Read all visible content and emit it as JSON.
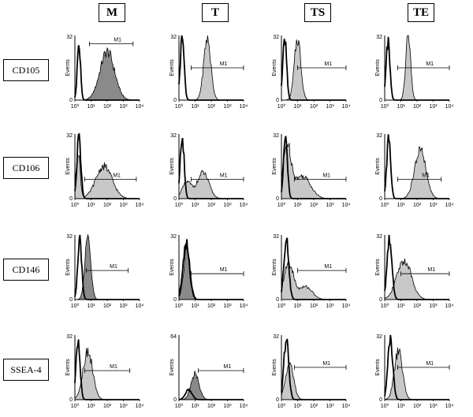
{
  "chart_data": {
    "type": "histogram-grid",
    "columns": [
      "M",
      "T",
      "TS",
      "TE"
    ],
    "rows": [
      "CD105",
      "CD106",
      "CD146",
      "SSEA-4"
    ],
    "axis": {
      "ylabel": "Events",
      "xscale": "log",
      "xlim": [
        1,
        10000
      ],
      "xticks": [
        "10⁰",
        "10¹",
        "10²",
        "10³",
        "10⁴"
      ],
      "y_ticks_default": [
        "0",
        "32"
      ],
      "y_ticks_override": {
        "SSEA-4|T": [
          "0",
          "64"
        ]
      }
    },
    "gate_label": "M1",
    "colors": {
      "line": "#000000",
      "fill_light": "#c8c8c8",
      "fill_dark": "#8a8a8a"
    },
    "gates": {
      "CD105": {
        "M": [
          0.9,
          3.6,
          0.87
        ],
        "T": [
          0.75,
          4.0,
          0.5
        ],
        "TS": [
          1.0,
          4.0,
          0.5
        ],
        "TE": [
          0.8,
          4.0,
          0.5
        ]
      },
      "CD106": {
        "M": [
          0.6,
          3.8,
          0.3
        ],
        "T": [
          0.75,
          4.0,
          0.3
        ],
        "TS": [
          0.8,
          4.0,
          0.3
        ],
        "TE": [
          0.8,
          3.5,
          0.3
        ]
      },
      "CD146": {
        "M": [
          0.7,
          3.3,
          0.45
        ],
        "T": [
          0.75,
          4.0,
          0.4
        ],
        "TS": [
          1.0,
          4.0,
          0.45
        ],
        "TE": [
          1.0,
          4.0,
          0.4
        ]
      },
      "SSEA-4": {
        "M": [
          0.6,
          3.4,
          0.45
        ],
        "T": [
          1.2,
          4.0,
          0.45
        ],
        "TS": [
          0.8,
          4.0,
          0.5
        ],
        "TE": [
          0.8,
          4.0,
          0.5
        ]
      }
    },
    "histograms": {
      "CD105": {
        "M": {
          "control": [
            [
              0.25,
              0.85,
              0.1
            ]
          ],
          "sample": [
            [
              2.0,
              0.75,
              0.45
            ]
          ],
          "fill": "dark"
        },
        "T": {
          "control": [
            [
              0.2,
              0.95,
              0.12
            ]
          ],
          "sample": [
            [
              1.75,
              0.95,
              0.22
            ]
          ],
          "fill": "light"
        },
        "TS": {
          "control": [
            [
              0.2,
              0.95,
              0.12
            ]
          ],
          "sample": [
            [
              1.0,
              0.95,
              0.2
            ]
          ],
          "fill": "light"
        },
        "TE": {
          "control": [
            [
              0.2,
              0.9,
              0.12
            ]
          ],
          "sample": [
            [
              1.45,
              1.0,
              0.15
            ]
          ],
          "fill": "light"
        }
      },
      "CD106": {
        "M": {
          "control": [
            [
              0.25,
              0.95,
              0.12
            ]
          ],
          "sample": [
            [
              0.2,
              0.75,
              0.12
            ],
            [
              1.8,
              0.5,
              0.5
            ]
          ],
          "fill": "light"
        },
        "T": {
          "control": [
            [
              0.2,
              0.95,
              0.12
            ]
          ],
          "sample": [
            [
              0.5,
              0.25,
              0.3
            ],
            [
              1.5,
              0.4,
              0.35
            ]
          ],
          "fill": "light"
        },
        "TS": {
          "control": [
            [
              0.25,
              0.95,
              0.12
            ]
          ],
          "sample": [
            [
              0.35,
              0.8,
              0.25
            ],
            [
              1.3,
              0.35,
              0.5
            ]
          ],
          "fill": "light"
        },
        "TE": {
          "control": [
            [
              0.25,
              0.95,
              0.12
            ]
          ],
          "sample": [
            [
              2.2,
              0.75,
              0.35
            ]
          ],
          "fill": "light"
        }
      },
      "CD146": {
        "M": {
          "control": [
            [
              0.3,
              0.95,
              0.12
            ]
          ],
          "sample": [
            [
              0.8,
              0.95,
              0.18
            ]
          ],
          "fill": "dark"
        },
        "T": {
          "control": [
            [
              0.45,
              0.85,
              0.2
            ]
          ],
          "sample": [
            [
              0.5,
              0.8,
              0.2
            ]
          ],
          "fill": "dark"
        },
        "TS": {
          "control": [
            [
              0.3,
              0.95,
              0.15
            ]
          ],
          "sample": [
            [
              0.45,
              0.55,
              0.3
            ],
            [
              1.5,
              0.2,
              0.4
            ]
          ],
          "fill": "light"
        },
        "TE": {
          "control": [
            [
              0.3,
              0.95,
              0.15
            ]
          ],
          "sample": [
            [
              1.2,
              0.6,
              0.45
            ]
          ],
          "fill": "light"
        }
      },
      "SSEA-4": {
        "M": {
          "control": [
            [
              0.2,
              0.95,
              0.12
            ]
          ],
          "sample": [
            [
              0.8,
              0.75,
              0.3
            ]
          ],
          "fill": "light"
        },
        "T": {
          "control": [
            [
              0.6,
              0.15,
              0.2
            ]
          ],
          "sample": [
            [
              1.0,
              0.4,
              0.25
            ]
          ],
          "fill": "dark"
        },
        "TS": {
          "control": [
            [
              0.3,
              0.95,
              0.15
            ]
          ],
          "sample": [
            [
              0.5,
              0.55,
              0.25
            ]
          ],
          "fill": "light"
        },
        "TE": {
          "control": [
            [
              0.35,
              0.95,
              0.15
            ]
          ],
          "sample": [
            [
              0.85,
              0.75,
              0.25
            ]
          ],
          "fill": "light"
        }
      }
    }
  }
}
